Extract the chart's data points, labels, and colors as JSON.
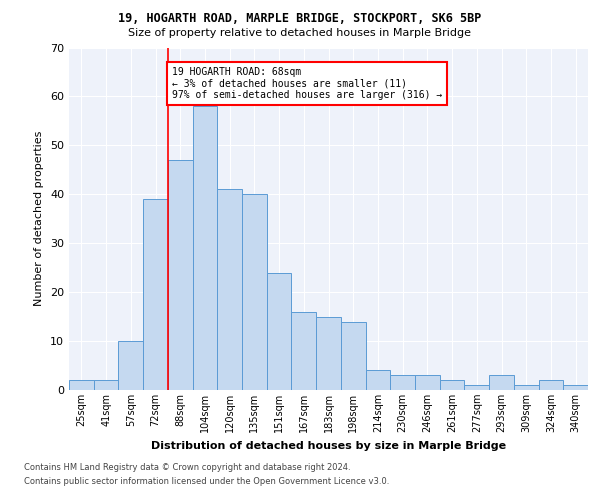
{
  "title1": "19, HOGARTH ROAD, MARPLE BRIDGE, STOCKPORT, SK6 5BP",
  "title2": "Size of property relative to detached houses in Marple Bridge",
  "xlabel": "Distribution of detached houses by size in Marple Bridge",
  "ylabel": "Number of detached properties",
  "categories": [
    "25sqm",
    "41sqm",
    "57sqm",
    "72sqm",
    "88sqm",
    "104sqm",
    "120sqm",
    "135sqm",
    "151sqm",
    "167sqm",
    "183sqm",
    "198sqm",
    "214sqm",
    "230sqm",
    "246sqm",
    "261sqm",
    "277sqm",
    "293sqm",
    "309sqm",
    "324sqm",
    "340sqm"
  ],
  "bar_values": [
    2,
    2,
    10,
    39,
    47,
    58,
    41,
    40,
    24,
    16,
    15,
    14,
    4,
    3,
    3,
    2,
    1,
    3,
    1,
    2,
    1
  ],
  "bar_color": "#c5d9f0",
  "bar_edge_color": "#5b9bd5",
  "red_line_x": 3.5,
  "annotation_text": "19 HOGARTH ROAD: 68sqm\n← 3% of detached houses are smaller (11)\n97% of semi-detached houses are larger (316) →",
  "annotation_box_color": "white",
  "annotation_box_edge_color": "red",
  "ylim": [
    0,
    70
  ],
  "yticks": [
    0,
    10,
    20,
    30,
    40,
    50,
    60,
    70
  ],
  "background_color": "#eef2fa",
  "grid_color": "white",
  "footer1": "Contains HM Land Registry data © Crown copyright and database right 2024.",
  "footer2": "Contains public sector information licensed under the Open Government Licence v3.0."
}
